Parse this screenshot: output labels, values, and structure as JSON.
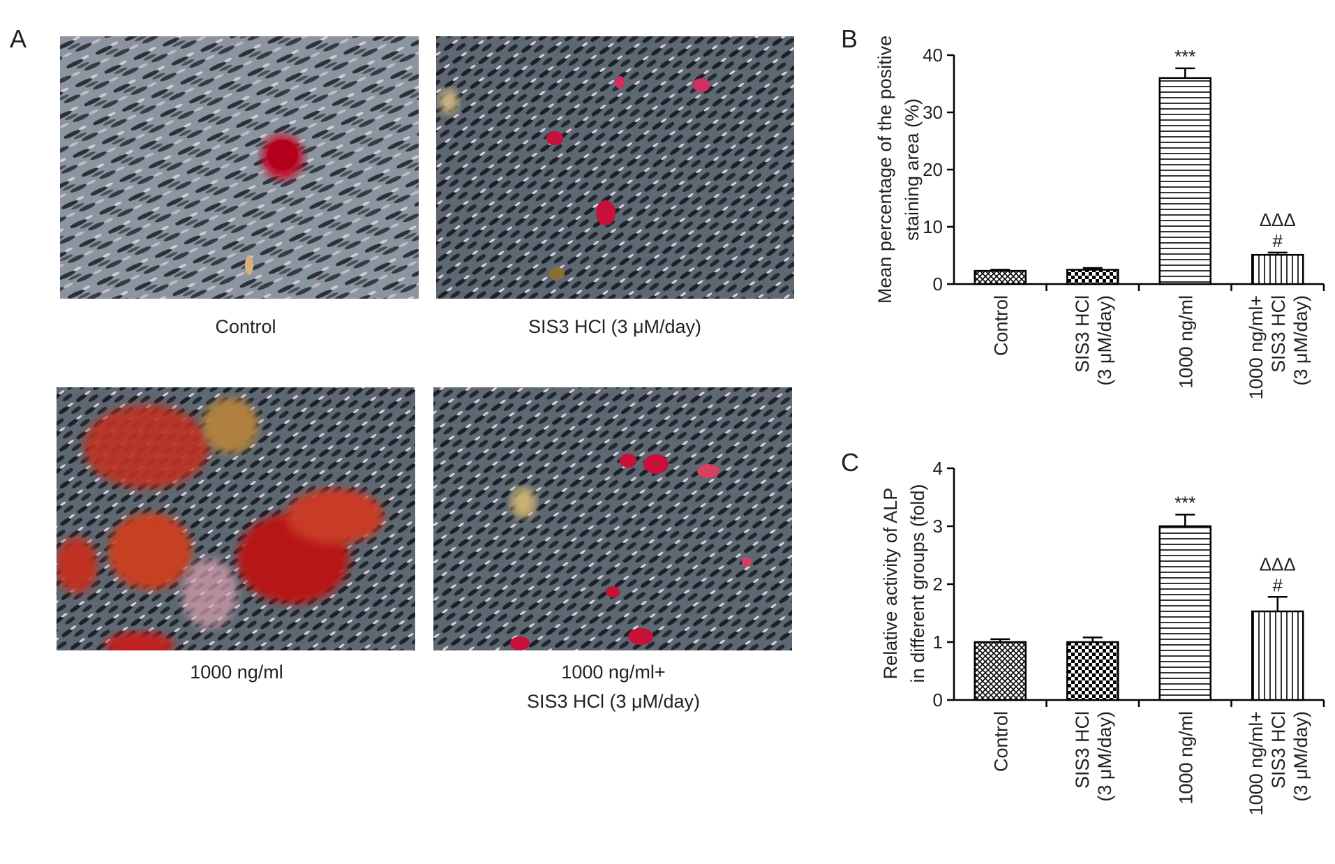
{
  "panel_a": {
    "label": "A",
    "captions": [
      [
        "Control"
      ],
      [
        "SIS3 HCl (3 μM/day)"
      ],
      [
        "1000 ng/ml"
      ],
      [
        "1000 ng/ml+",
        "SIS3 HCl (3 μM/day)"
      ]
    ]
  },
  "chart_data": [
    {
      "type": "bar",
      "panel_label": "B",
      "y_label": [
        "Mean percentage of the positive",
        "staining area (%)"
      ],
      "categories": [
        [
          "Control"
        ],
        [
          "SIS3 HCl",
          "(3 μM/day)"
        ],
        [
          "1000 ng/ml"
        ],
        [
          "1000 ng/ml+",
          "SIS3 HCl",
          "(3 μM/day)"
        ]
      ],
      "values": [
        2.3,
        2.5,
        36,
        5.1
      ],
      "errors": [
        0.2,
        0.3,
        1.7,
        0.4
      ],
      "value_annotations": [
        null,
        null,
        [
          "***"
        ],
        [
          "ΔΔΔ",
          "#"
        ]
      ],
      "ylim": [
        0,
        40
      ],
      "yticks": [
        0,
        10,
        20,
        30,
        40
      ],
      "color": "#000000"
    },
    {
      "type": "bar",
      "panel_label": "C",
      "y_label": [
        "Relative activity of ALP",
        "in different groups (fold)"
      ],
      "categories": [
        [
          "Control"
        ],
        [
          "SIS3 HCl",
          "(3 μM/day)"
        ],
        [
          "1000 ng/ml"
        ],
        [
          "1000 ng/ml+",
          "SIS3 HCl",
          "(3 μM/day)"
        ]
      ],
      "values": [
        1.0,
        1.0,
        3.0,
        1.53
      ],
      "errors": [
        0.05,
        0.08,
        0.2,
        0.25
      ],
      "value_annotations": [
        null,
        null,
        [
          "***"
        ],
        [
          "ΔΔΔ",
          "#"
        ]
      ],
      "ylim": [
        0,
        4
      ],
      "yticks": [
        0,
        1,
        2,
        3,
        4
      ],
      "color": "#000000"
    }
  ]
}
